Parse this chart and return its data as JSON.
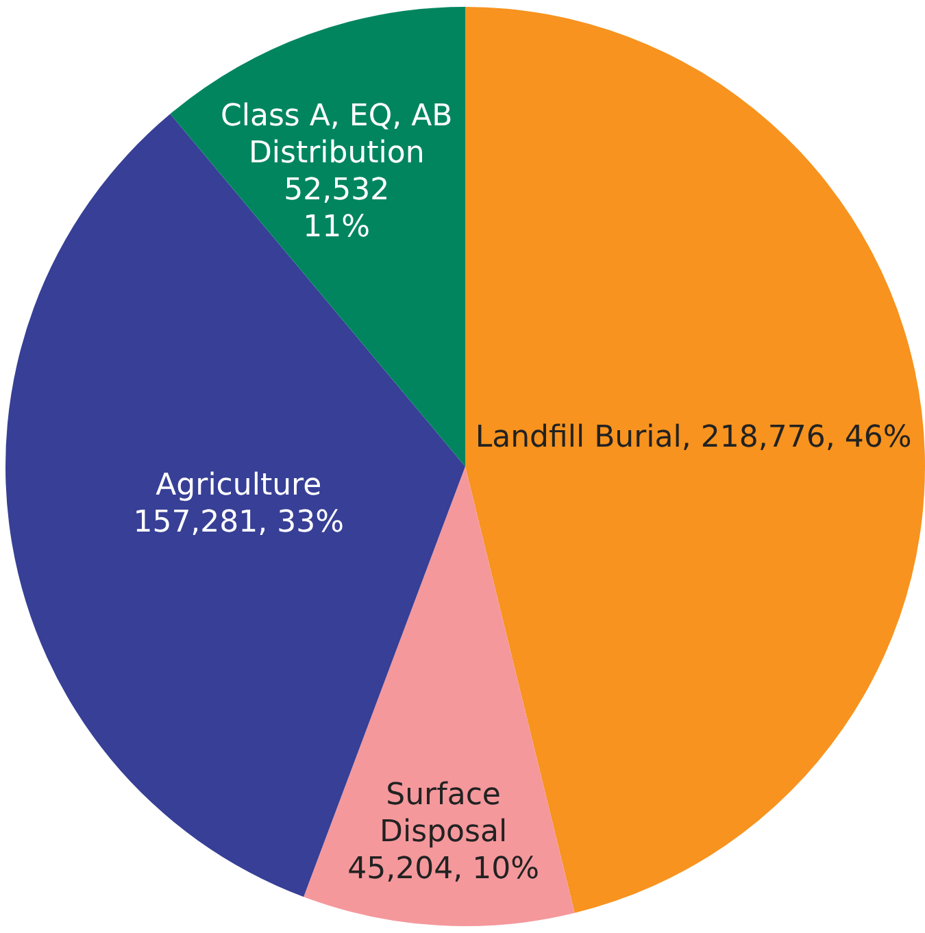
{
  "chart_data": {
    "type": "pie",
    "categories": [
      "Landfill Burial",
      "Surface\nDisposal",
      "Agriculture",
      "Class A, EQ, AB\nDistribution"
    ],
    "values": [
      218776,
      45204,
      157281,
      52532
    ],
    "value_labels": [
      "218,776, 46%",
      "45,204, 10%",
      "157,281, 33%",
      "52,532\n11%"
    ],
    "colors": [
      "#f7931e",
      "#f4989c",
      "#373f96",
      "#00855f"
    ],
    "legend": false
  }
}
